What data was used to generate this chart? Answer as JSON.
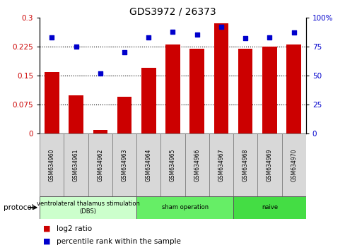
{
  "title": "GDS3972 / 26373",
  "samples": [
    "GSM634960",
    "GSM634961",
    "GSM634962",
    "GSM634963",
    "GSM634964",
    "GSM634965",
    "GSM634966",
    "GSM634967",
    "GSM634968",
    "GSM634969",
    "GSM634970"
  ],
  "log2_ratio": [
    0.16,
    0.1,
    0.01,
    0.095,
    0.17,
    0.23,
    0.22,
    0.285,
    0.22,
    0.225,
    0.23
  ],
  "percentile_rank": [
    83,
    75,
    52,
    70,
    83,
    88,
    85,
    92,
    82,
    83,
    87
  ],
  "bar_color": "#cc0000",
  "dot_color": "#0000cc",
  "ylim_left": [
    0,
    0.3
  ],
  "ylim_right": [
    0,
    100
  ],
  "yticks_left": [
    0,
    0.075,
    0.15,
    0.225,
    0.3
  ],
  "ytick_labels_left": [
    "0",
    "0.075",
    "0.15",
    "0.225",
    "0.3"
  ],
  "yticks_right": [
    0,
    25,
    50,
    75,
    100
  ],
  "ytick_labels_right": [
    "0",
    "25",
    "50",
    "75",
    "100%"
  ],
  "dotted_lines": [
    0.075,
    0.15,
    0.225
  ],
  "protocol_groups": [
    {
      "label": "ventrolateral thalamus stimulation\n(DBS)",
      "start": 0,
      "end": 3,
      "color": "#ccffcc"
    },
    {
      "label": "sham operation",
      "start": 4,
      "end": 7,
      "color": "#66ee66"
    },
    {
      "label": "naive",
      "start": 8,
      "end": 10,
      "color": "#44dd44"
    }
  ],
  "protocol_label": "protocol",
  "legend_bar_label": "log2 ratio",
  "legend_dot_label": "percentile rank within the sample",
  "bg_color": "#ffffff",
  "tick_label_color_left": "#cc0000",
  "tick_label_color_right": "#0000cc",
  "sample_box_color": "#d8d8d8",
  "sample_box_edge": "#888888"
}
